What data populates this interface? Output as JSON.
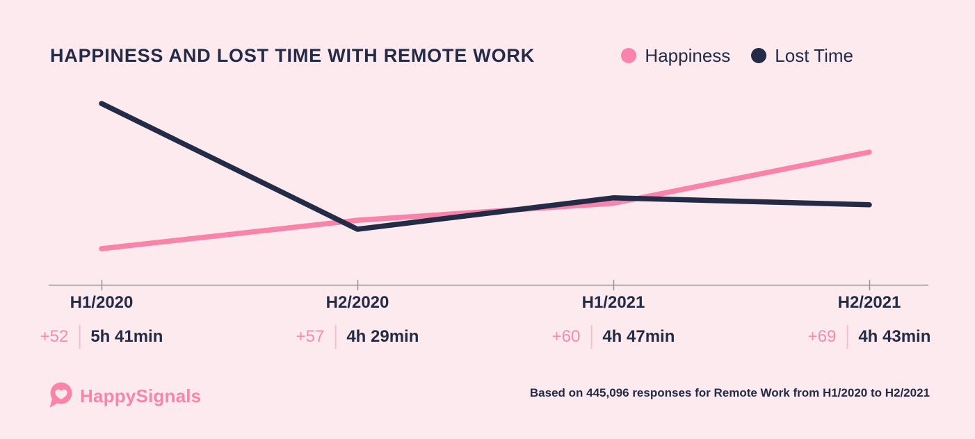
{
  "header": {
    "title": "HAPPINESS AND LOST TIME WITH REMOTE WORK",
    "legend": [
      {
        "label": "Happiness",
        "color": "#f884ab"
      },
      {
        "label": "Lost Time",
        "color": "#232b47"
      }
    ]
  },
  "chart_data": {
    "type": "line",
    "title": "HAPPINESS AND LOST TIME WITH REMOTE WORK",
    "categories": [
      "H1/2020",
      "H2/2020",
      "H1/2021",
      "H2/2021"
    ],
    "series": [
      {
        "name": "Happiness",
        "color": "#f884ab",
        "unit": "happiness score",
        "values": [
          52,
          57,
          60,
          69
        ],
        "value_labels": [
          "+52",
          "+57",
          "+60",
          "+69"
        ],
        "axis_range": [
          52,
          69
        ]
      },
      {
        "name": "Lost Time",
        "color": "#232b47",
        "unit": "minutes",
        "values": [
          341,
          269,
          287,
          283
        ],
        "value_labels": [
          "5h 41min",
          "4h 29min",
          "4h 47min",
          "4h 43min"
        ],
        "axis_range": [
          269,
          341
        ]
      }
    ],
    "xlabel": "",
    "ylabel": "",
    "grid": false,
    "legend_position": "top-right"
  },
  "footer": {
    "logo_text": "HappySignals",
    "source_note": "Based on 445,096 responses for Remote Work from H1/2020 to H2/2021"
  },
  "colors": {
    "background": "#fceaee",
    "navy": "#232b47",
    "pink": "#f884ab",
    "pink_value_text": "#f38caf",
    "divider_pink": "#f3bfcc",
    "axis_gray": "#98949b",
    "logo_pink": "#f884ab"
  }
}
